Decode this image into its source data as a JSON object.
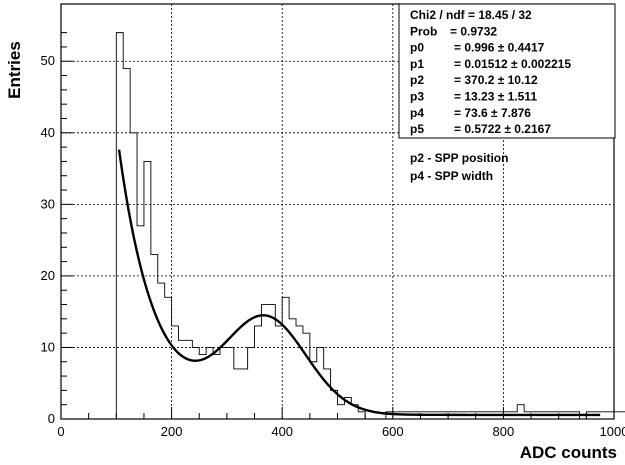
{
  "chart_data": {
    "type": "histogram",
    "xlabel": "ADC counts",
    "ylabel": "Entries",
    "xlim": [
      0,
      1000
    ],
    "ylim": [
      0,
      58
    ],
    "xticks": [
      0,
      200,
      400,
      600,
      800,
      1000
    ],
    "yticks": [
      0,
      10,
      20,
      30,
      40,
      50
    ],
    "grid": true,
    "bin_width": 12.5,
    "histogram": {
      "x_start": 100,
      "counts": [
        54,
        49,
        40,
        27,
        36,
        23,
        19,
        17,
        13,
        11,
        11,
        10,
        9,
        10,
        9,
        10,
        10,
        7,
        7,
        10,
        13,
        16,
        16,
        13,
        17,
        14,
        13,
        12,
        8,
        10,
        7,
        4,
        2,
        3,
        2,
        1,
        0,
        0,
        0,
        1,
        1,
        1,
        1,
        1,
        1,
        1,
        1,
        1,
        1,
        1,
        1,
        1,
        1,
        1,
        1,
        1,
        1,
        1,
        2,
        1,
        1,
        1,
        1,
        1,
        1,
        1,
        1,
        0,
        1,
        1,
        1,
        1,
        1,
        1,
        0,
        0,
        0,
        0,
        0,
        0
      ]
    },
    "fit": {
      "function": "p0*exp(-p1*x) + p5*gaus(x; p2, p4)",
      "params": {
        "p0": 0.996,
        "p1": 0.01512,
        "p2": 370.2,
        "p3": 13.23,
        "p4": 73.6,
        "p5": 0.5722
      },
      "x_range": [
        105,
        975
      ]
    },
    "stats_box": {
      "lines": [
        {
          "label": "Chi2 / ndf = 18.45 / 32",
          "value": ""
        },
        {
          "label": "Prob",
          "value": "= 0.9732"
        },
        {
          "label": "p0",
          "value": "= 0.996 ± 0.4417"
        },
        {
          "label": "p1",
          "value": "= 0.01512 ± 0.002215"
        },
        {
          "label": "p2",
          "value": "= 370.2 ± 10.12"
        },
        {
          "label": "p3",
          "value": "= 13.23 ± 1.511"
        },
        {
          "label": "p4",
          "value": "=  73.6 ± 7.876"
        },
        {
          "label": "p5",
          "value": "= 0.5722 ± 0.2167"
        }
      ]
    },
    "annotations": [
      "p2 - SPP position",
      "p4 - SPP width"
    ]
  }
}
